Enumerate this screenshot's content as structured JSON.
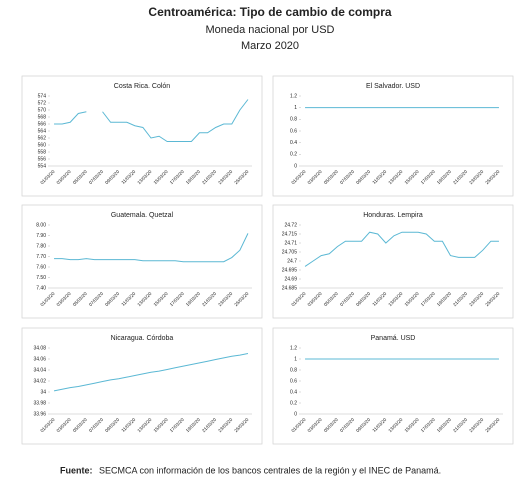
{
  "header": {
    "title": "Centroamérica: Tipo de cambio de compra",
    "subtitle": "Moneda nacional por USD",
    "period": "Marzo 2020"
  },
  "footer": {
    "source_label": "Fuente:",
    "source": "SECMCA con información de los bancos centrales de la región y el INEC de Panamá."
  },
  "chart_data": [
    {
      "type": "line",
      "title": "Costa Rica. Colón",
      "categories": [
        "01/03/20",
        null,
        "03/03/20",
        null,
        "05/03/20",
        null,
        "07/03/20",
        null,
        "09/03/20",
        null,
        "11/03/20",
        null,
        "13/03/20",
        null,
        "15/03/20",
        null,
        "17/03/20",
        null,
        "19/03/20",
        null,
        "21/03/20",
        null,
        "23/03/20",
        null,
        "25/03/20"
      ],
      "series": [
        {
          "name": "Costa Rica",
          "color": "#5bb8d4",
          "values": [
            566,
            566,
            566.5,
            569,
            569.5,
            null,
            569.5,
            566.5,
            566.5,
            566.5,
            565.5,
            565,
            562,
            562.5,
            561,
            561,
            561,
            561,
            563.5,
            563.5,
            565,
            566,
            566,
            570,
            573
          ]
        }
      ],
      "ylim": [
        554,
        574
      ],
      "yticks": [
        554,
        556,
        558,
        560,
        562,
        564,
        566,
        568,
        570,
        572,
        574
      ],
      "grid": false
    },
    {
      "type": "line",
      "title": "El Salvador. USD",
      "categories": [
        "01/03/20",
        null,
        "03/03/20",
        null,
        "05/03/20",
        null,
        "07/03/20",
        null,
        "09/03/20",
        null,
        "11/03/20",
        null,
        "13/03/20",
        null,
        "15/03/20",
        null,
        "17/03/20",
        null,
        "19/03/20",
        null,
        "21/03/20",
        null,
        "23/03/20",
        null,
        "25/03/20"
      ],
      "series": [
        {
          "name": "El Salvador",
          "color": "#5bb8d4",
          "values": [
            1,
            1,
            1,
            1,
            1,
            1,
            1,
            1,
            1,
            1,
            1,
            1,
            1,
            1,
            1,
            1,
            1,
            1,
            1,
            1,
            1,
            1,
            1,
            1,
            1
          ]
        }
      ],
      "ylim": [
        0,
        1.2
      ],
      "yticks": [
        0,
        0.2,
        0.4,
        0.6,
        0.8,
        1,
        1.2
      ],
      "grid": false
    },
    {
      "type": "line",
      "title": "Guatemala. Quetzal",
      "categories": [
        "01/03/20",
        null,
        "03/03/20",
        null,
        "05/03/20",
        null,
        "07/03/20",
        null,
        "09/03/20",
        null,
        "11/03/20",
        null,
        "13/03/20",
        null,
        "15/03/20",
        null,
        "17/03/20",
        null,
        "19/03/20",
        null,
        "21/03/20",
        null,
        "23/03/20",
        null,
        "25/03/20"
      ],
      "series": [
        {
          "name": "Guatemala",
          "color": "#5bb8d4",
          "values": [
            7.68,
            7.68,
            7.67,
            7.67,
            7.68,
            7.67,
            7.67,
            7.67,
            7.67,
            7.67,
            7.67,
            7.66,
            7.66,
            7.66,
            7.66,
            7.66,
            7.65,
            7.65,
            7.65,
            7.65,
            7.65,
            7.65,
            7.69,
            7.76,
            7.92
          ]
        }
      ],
      "ylim": [
        7.4,
        8.0
      ],
      "yticks": [
        {
          "value": 7.4,
          "label": "7.40"
        },
        {
          "value": 7.5,
          "label": "7.50"
        },
        {
          "value": 7.6,
          "label": "7.60"
        },
        {
          "value": 7.7,
          "label": "7.70"
        },
        {
          "value": 7.8,
          "label": "7.80"
        },
        {
          "value": 7.9,
          "label": "7.90"
        },
        {
          "value": 8.0,
          "label": "8.00"
        }
      ],
      "grid": false
    },
    {
      "type": "line",
      "title": "Honduras. Lempira",
      "categories": [
        "01/03/20",
        null,
        "03/03/20",
        null,
        "05/03/20",
        null,
        "07/03/20",
        null,
        "09/03/20",
        null,
        "11/03/20",
        null,
        "13/03/20",
        null,
        "15/03/20",
        null,
        "17/03/20",
        null,
        "19/03/20",
        null,
        "21/03/20",
        null,
        "23/03/20",
        null,
        "25/03/20"
      ],
      "series": [
        {
          "name": "Honduras",
          "color": "#5bb8d4",
          "values": [
            24.697,
            24.7,
            24.703,
            24.704,
            24.708,
            24.711,
            24.711,
            24.711,
            24.716,
            24.715,
            24.71,
            24.714,
            24.716,
            24.716,
            24.716,
            24.715,
            24.711,
            24.711,
            24.703,
            24.702,
            24.702,
            24.702,
            24.706,
            24.711,
            24.711
          ]
        }
      ],
      "ylim": [
        24.685,
        24.72
      ],
      "yticks": [
        24.685,
        24.69,
        24.695,
        24.7,
        24.705,
        24.71,
        24.715,
        24.72
      ],
      "grid": false
    },
    {
      "type": "line",
      "title": "Nicaragua. Córdoba",
      "categories": [
        "01/03/20",
        null,
        "03/03/20",
        null,
        "05/03/20",
        null,
        "07/03/20",
        null,
        "09/03/20",
        null,
        "11/03/20",
        null,
        "13/03/20",
        null,
        "15/03/20",
        null,
        "17/03/20",
        null,
        "19/03/20",
        null,
        "21/03/20",
        null,
        "23/03/20",
        null,
        "25/03/20"
      ],
      "series": [
        {
          "name": "Nicaragua",
          "color": "#5bb8d4",
          "values": [
            34.002,
            34.005,
            34.008,
            34.01,
            34.013,
            34.016,
            34.019,
            34.022,
            34.024,
            34.027,
            34.03,
            34.033,
            34.036,
            34.038,
            34.041,
            34.044,
            34.047,
            34.05,
            34.053,
            34.056,
            34.059,
            34.062,
            34.065,
            34.067,
            34.07
          ]
        }
      ],
      "ylim": [
        33.96,
        34.08
      ],
      "yticks": [
        33.96,
        33.98,
        34,
        34.02,
        34.04,
        34.06,
        34.08
      ],
      "grid": false
    },
    {
      "type": "line",
      "title": "Panamá. USD",
      "categories": [
        "01/03/20",
        null,
        "03/03/20",
        null,
        "05/03/20",
        null,
        "07/03/20",
        null,
        "09/03/20",
        null,
        "11/03/20",
        null,
        "13/03/20",
        null,
        "15/03/20",
        null,
        "17/03/20",
        null,
        "19/03/20",
        null,
        "21/03/20",
        null,
        "23/03/20",
        null,
        "25/03/20"
      ],
      "series": [
        {
          "name": "Panamá",
          "color": "#5bb8d4",
          "values": [
            1,
            1,
            1,
            1,
            1,
            1,
            1,
            1,
            1,
            1,
            1,
            1,
            1,
            1,
            1,
            1,
            1,
            1,
            1,
            1,
            1,
            1,
            1,
            1,
            1
          ]
        }
      ],
      "ylim": [
        0,
        1.2
      ],
      "yticks": [
        0,
        0.2,
        0.4,
        0.6,
        0.8,
        1,
        1.2
      ],
      "grid": false
    }
  ]
}
